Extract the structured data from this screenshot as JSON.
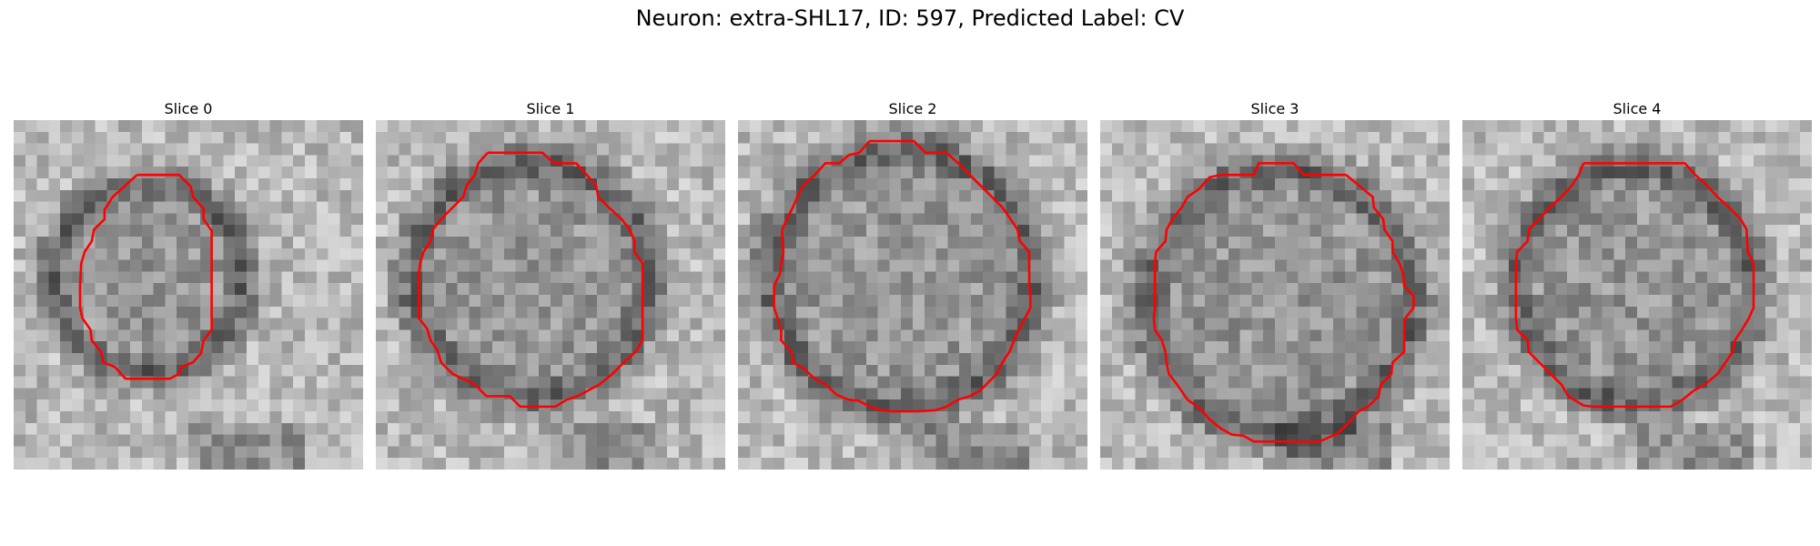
{
  "figure": {
    "title": "Neuron: extra-SHL17, ID: 597, Predicted Label: CV",
    "contour_color": "#ff0000"
  },
  "panels": [
    {
      "title": "Slice 0"
    },
    {
      "title": "Slice 1"
    },
    {
      "title": "Slice 2"
    },
    {
      "title": "Slice 3"
    },
    {
      "title": "Slice 4"
    }
  ]
}
